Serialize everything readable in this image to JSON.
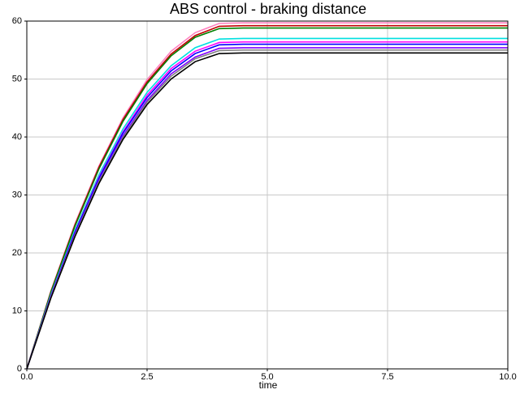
{
  "chart_data": {
    "type": "line",
    "title": "ABS control - braking distance",
    "x_label": "time",
    "x": [
      0,
      0.5,
      1,
      1.5,
      2,
      2.5,
      3,
      3.5,
      4,
      4.5,
      10
    ],
    "series": [
      {
        "color": "#ff80c0",
        "values": [
          0,
          13.4,
          25.0,
          35.0,
          43.3,
          49.9,
          54.8,
          58.0,
          59.6,
          59.7,
          59.7
        ]
      },
      {
        "color": "#c00000",
        "values": [
          0,
          13.3,
          24.8,
          34.8,
          43.0,
          49.5,
          54.3,
          57.5,
          59.1,
          59.2,
          59.2
        ]
      },
      {
        "color": "#008000",
        "values": [
          0,
          13.2,
          24.6,
          34.5,
          42.7,
          49.2,
          54.0,
          57.2,
          58.7,
          58.8,
          58.8
        ]
      },
      {
        "color": "#00e0e0",
        "values": [
          0,
          12.8,
          23.9,
          33.5,
          41.4,
          47.7,
          52.3,
          55.4,
          56.9,
          57.0,
          57.0
        ]
      },
      {
        "color": "#ff00ff",
        "values": [
          0,
          12.6,
          23.6,
          33.1,
          40.9,
          47.2,
          51.8,
          54.8,
          56.3,
          56.4,
          56.4
        ]
      },
      {
        "color": "#0000ff",
        "values": [
          0,
          12.5,
          23.5,
          32.9,
          40.7,
          46.8,
          51.4,
          54.4,
          55.9,
          56.0,
          56.0
        ]
      },
      {
        "color": "#8000ff",
        "values": [
          0,
          12.4,
          23.2,
          32.5,
          40.2,
          46.3,
          50.9,
          53.8,
          55.3,
          55.4,
          55.4
        ]
      },
      {
        "color": "#808080",
        "values": [
          0,
          12.3,
          23.0,
          32.3,
          39.9,
          46.0,
          50.5,
          53.5,
          54.9,
          55.0,
          55.0
        ]
      },
      {
        "color": "#000000",
        "values": [
          0,
          12.2,
          22.8,
          32.0,
          39.6,
          45.6,
          50.0,
          53.0,
          54.4,
          54.5,
          54.5
        ]
      }
    ],
    "xlim": [
      0,
      10
    ],
    "xticks": [
      {
        "value": 0,
        "label": "0.0"
      },
      {
        "value": 2.5,
        "label": "2.5"
      },
      {
        "value": 5,
        "label": "5.0"
      },
      {
        "value": 7.5,
        "label": "7.5"
      },
      {
        "value": 10,
        "label": "10.0"
      }
    ],
    "ylim": [
      0,
      60
    ],
    "yticks": [
      0,
      10,
      20,
      30,
      40,
      50,
      60
    ],
    "grid": true
  }
}
